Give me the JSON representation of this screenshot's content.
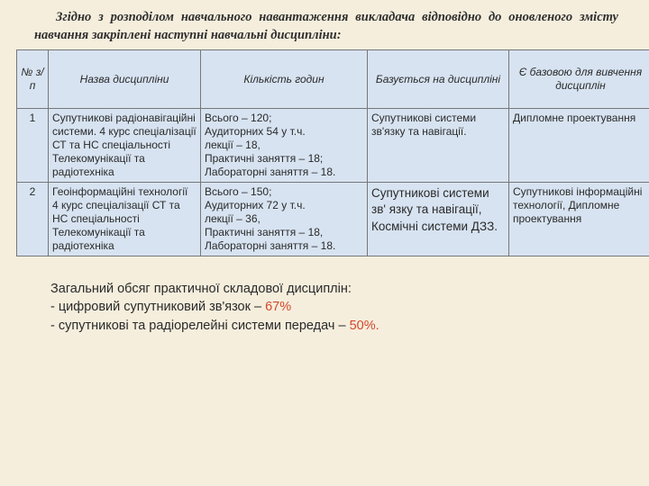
{
  "intro": "Згідно з розподілом навчального навантаження викладача відповідно до оновленого змісту навчання закріплені наступні навчальні дисципліни:",
  "headers": {
    "num": "№ з/п",
    "name": "Назва дисципліни",
    "hours": "Кількість годин",
    "based": "Базується на дисципліні",
    "basefor": "Є базовою для вивчення дисциплін"
  },
  "rows": [
    {
      "num": "1",
      "name": "Супутникові радіонавігаційні системи. 4 курс спеціалізації СТ та НС спеціальності Телекомунікації та радіотехніка",
      "hours": "Всього – 120;\nАудиторних 54 у т.ч.\nлекції – 18,\nПрактичні заняття – 18;\nЛабораторні заняття – 18.",
      "based": "Супутникові системи зв'язку та навігації.",
      "basefor": "Дипломне проектування"
    },
    {
      "num": "2",
      "name": "Геоінформаційні технології\n4 курс спеціалізації СТ та НС спеціальності Телекомунікації та радіотехніка",
      "hours": "Всього – 150;\nАудиторних 72 у т.ч.\nлекції – 36,\nПрактичні заняття – 18,\nЛабораторні заняття – 18.",
      "based": "Супутникові системи зв' язку та навігації, Космічні системи ДЗЗ.",
      "basefor": "Супутникові інформаційні технології, Дипломне проектування"
    }
  ],
  "footer": {
    "line1": "Загальний обсяг практичної складової дисциплін:",
    "line2a": "- цифровий супутниковий зв'язок – ",
    "line2b": "67%",
    "line3a": "- супутникові та радіорелейні системи передач – ",
    "line3b": "50%."
  }
}
